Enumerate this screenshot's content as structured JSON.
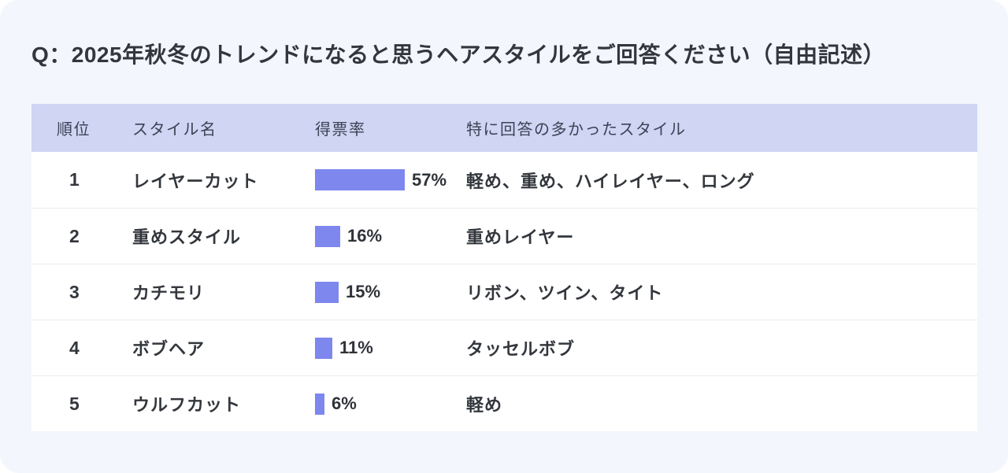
{
  "title": "Q：2025年秋冬のトレンドになると思うヘアスタイルをご回答ください（自由記述）",
  "table": {
    "headers": [
      "順位",
      "スタイル名",
      "得票率",
      "特に回答の多かったスタイル"
    ],
    "rows": [
      {
        "rank": "1",
        "style": "レイヤーカット",
        "percent": "57%",
        "top_answers": "軽め、重め、ハイレイヤー、ロング"
      },
      {
        "rank": "2",
        "style": "重めスタイル",
        "percent": "16%",
        "top_answers": "重めレイヤー"
      },
      {
        "rank": "3",
        "style": "カチモリ",
        "percent": "15%",
        "top_answers": "リボン、ツイン、タイト"
      },
      {
        "rank": "4",
        "style": "ボブヘア",
        "percent": "11%",
        "top_answers": "タッセルボブ"
      },
      {
        "rank": "5",
        "style": "ウルフカット",
        "percent": "6%",
        "top_answers": "軽め"
      }
    ]
  },
  "chart_data": {
    "type": "bar",
    "title": "Q：2025年秋冬のトレンドになると思うヘアスタイルをご回答ください（自由記述）",
    "categories": [
      "レイヤーカット",
      "重めスタイル",
      "カチモリ",
      "ボブヘア",
      "ウルフカット"
    ],
    "values": [
      57,
      16,
      15,
      11,
      6
    ],
    "value_labels": [
      "57%",
      "16%",
      "15%",
      "11%",
      "6%"
    ],
    "xlabel": "",
    "ylabel": "得票率",
    "ylim": [
      0,
      100
    ],
    "orientation": "horizontal",
    "grid": false,
    "legend": false,
    "annotations": [
      "軽め、重め、ハイレイヤー、ロング",
      "重めレイヤー",
      "リボン、ツイン、タイト",
      "タッセルボブ",
      "軽め"
    ]
  },
  "colors": {
    "bar": "#7d87ee",
    "header_bg": "#cfd5f3",
    "card_bg": "#f3f6fc",
    "row_bg": "#ffffff",
    "text": "#33373d"
  }
}
